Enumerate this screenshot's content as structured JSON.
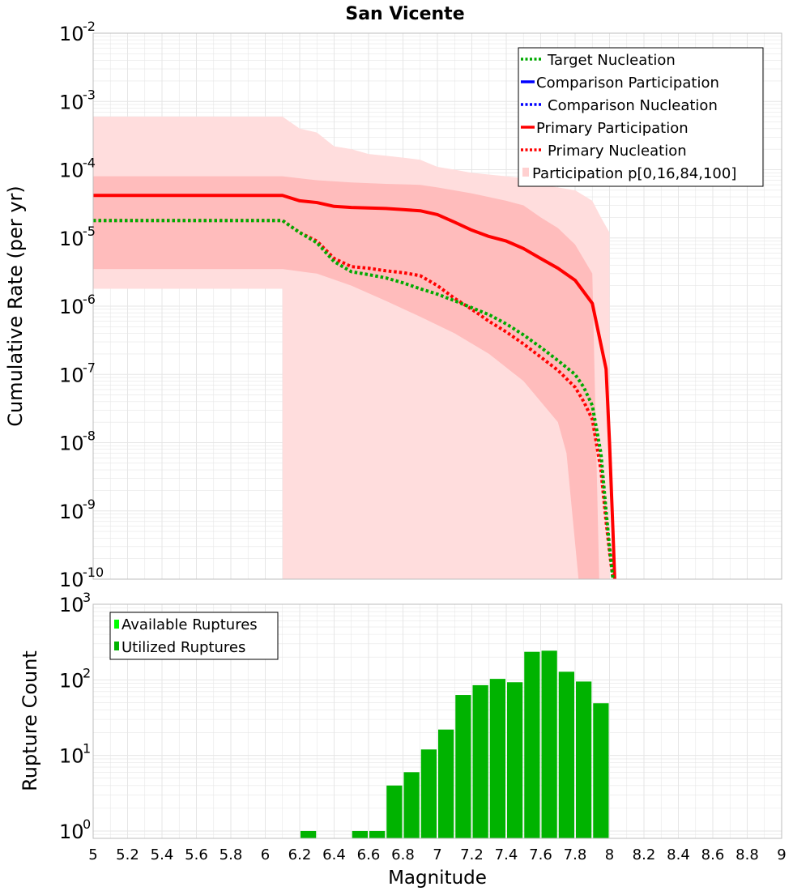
{
  "colors": {
    "target": "#00aa00",
    "comparison": "#0000ff",
    "primary": "#ff0000",
    "band_outer": "#ffdddd",
    "band_inner": "#ffbcbc",
    "available": "#00ff00",
    "utilized": "#00b300",
    "grid": "#e6e6e6"
  },
  "chart_data": [
    {
      "type": "line",
      "title": "San Vicente",
      "xlabel": "",
      "ylabel": "Cumulative Rate (per yr)",
      "xlim": [
        5,
        9
      ],
      "ylim": [
        1e-10,
        0.01
      ],
      "yscale": "log",
      "ytick_labels": [
        {
          "base": "10",
          "exp": "-10",
          "value": 1e-10
        },
        {
          "base": "10",
          "exp": "-9",
          "value": 1e-09
        },
        {
          "base": "10",
          "exp": "-8",
          "value": 1e-08
        },
        {
          "base": "10",
          "exp": "-7",
          "value": 1e-07
        },
        {
          "base": "10",
          "exp": "-6",
          "value": 1e-06
        },
        {
          "base": "10",
          "exp": "-5",
          "value": 1e-05
        },
        {
          "base": "10",
          "exp": "-4",
          "value": 0.0001
        },
        {
          "base": "10",
          "exp": "-3",
          "value": 0.001
        },
        {
          "base": "10",
          "exp": "-2",
          "value": 0.01
        }
      ],
      "legend": {
        "position": "top-right",
        "entries": [
          "Target Nucleation",
          "Comparison Participation",
          "Comparison Nucleation",
          "Primary Participation",
          "Primary Nucleation",
          "Participation p[0,16,84,100]"
        ]
      },
      "bands": {
        "p0_p100": {
          "upper": [
            [
              5.0,
              0.0006
            ],
            [
              6.1,
              0.0006
            ],
            [
              6.2,
              0.0004
            ],
            [
              6.3,
              0.00035
            ],
            [
              6.4,
              0.00022
            ],
            [
              6.5,
              0.0002
            ],
            [
              6.6,
              0.00017
            ],
            [
              6.7,
              0.00016
            ],
            [
              6.8,
              0.00015
            ],
            [
              6.9,
              0.00014
            ],
            [
              7.0,
              0.00011
            ],
            [
              7.1,
              0.0001
            ],
            [
              7.2,
              9e-05
            ],
            [
              7.3,
              8.5e-05
            ],
            [
              7.4,
              8e-05
            ],
            [
              7.5,
              7.5e-05
            ],
            [
              7.6,
              6e-05
            ],
            [
              7.7,
              5.5e-05
            ],
            [
              7.8,
              5e-05
            ],
            [
              7.9,
              3.5e-05
            ],
            [
              7.95,
              2e-05
            ],
            [
              8.0,
              1.2e-05
            ],
            [
              8.001,
              1e-10
            ]
          ],
          "lower": [
            [
              5.0,
              1.8e-06
            ],
            [
              6.1,
              1.8e-06
            ],
            [
              6.101,
              1e-10
            ]
          ]
        },
        "p16_p84": {
          "upper": [
            [
              5.0,
              8e-05
            ],
            [
              6.1,
              8e-05
            ],
            [
              6.3,
              7e-05
            ],
            [
              6.5,
              6.5e-05
            ],
            [
              6.7,
              6.2e-05
            ],
            [
              6.9,
              6e-05
            ],
            [
              7.0,
              5.5e-05
            ],
            [
              7.2,
              4.5e-05
            ],
            [
              7.4,
              3.5e-05
            ],
            [
              7.5,
              3e-05
            ],
            [
              7.6,
              2e-05
            ],
            [
              7.7,
              1.4e-05
            ],
            [
              7.8,
              8e-06
            ],
            [
              7.9,
              3e-06
            ],
            [
              7.94,
              1e-10
            ]
          ],
          "lower": [
            [
              5.0,
              3.5e-06
            ],
            [
              6.1,
              3.5e-06
            ],
            [
              6.3,
              3e-06
            ],
            [
              6.5,
              2e-06
            ],
            [
              6.7,
              1.2e-06
            ],
            [
              6.9,
              7e-07
            ],
            [
              7.1,
              4e-07
            ],
            [
              7.3,
              2e-07
            ],
            [
              7.5,
              8e-08
            ],
            [
              7.7,
              2e-08
            ],
            [
              7.75,
              7e-09
            ],
            [
              7.82,
              1e-10
            ]
          ]
        }
      },
      "series": [
        {
          "name": "Primary Participation",
          "style": "solid",
          "x": [
            5.0,
            5.2,
            5.4,
            5.6,
            5.8,
            6.0,
            6.1,
            6.2,
            6.3,
            6.4,
            6.5,
            6.6,
            6.7,
            6.8,
            6.9,
            7.0,
            7.1,
            7.2,
            7.3,
            7.4,
            7.5,
            7.6,
            7.7,
            7.8,
            7.9,
            7.98,
            8.0,
            8.02,
            8.03
          ],
          "y": [
            4.2e-05,
            4.2e-05,
            4.2e-05,
            4.2e-05,
            4.2e-05,
            4.2e-05,
            4.2e-05,
            3.5e-05,
            3.3e-05,
            2.9e-05,
            2.8e-05,
            2.75e-05,
            2.7e-05,
            2.6e-05,
            2.5e-05,
            2.2e-05,
            1.7e-05,
            1.3e-05,
            1.05e-05,
            9e-06,
            7e-06,
            5e-06,
            3.6e-06,
            2.4e-06,
            1.1e-06,
            1.2e-07,
            1e-08,
            5e-10,
            1e-10
          ]
        },
        {
          "name": "Primary Nucleation",
          "style": "dotted",
          "x": [
            5.0,
            5.4,
            5.8,
            6.0,
            6.1,
            6.2,
            6.3,
            6.4,
            6.5,
            6.6,
            6.7,
            6.8,
            6.9,
            7.0,
            7.1,
            7.2,
            7.3,
            7.4,
            7.5,
            7.6,
            7.7,
            7.8,
            7.85,
            7.9,
            7.95,
            7.98,
            8.0,
            8.02
          ],
          "y": [
            1.8e-05,
            1.8e-05,
            1.8e-05,
            1.8e-05,
            1.8e-05,
            1.2e-05,
            9e-06,
            5e-06,
            3.8e-06,
            3.6e-06,
            3.3e-06,
            3.1e-06,
            2.8e-06,
            2e-06,
            1.3e-06,
            9e-07,
            6e-07,
            4.2e-07,
            2.8e-07,
            1.8e-07,
            1.15e-07,
            6.5e-08,
            4e-08,
            2.2e-08,
            4e-09,
            7e-10,
            2.5e-10,
            1e-10
          ]
        },
        {
          "name": "Target Nucleation",
          "style": "dotted",
          "x": [
            5.0,
            5.4,
            5.8,
            6.0,
            6.1,
            6.2,
            6.3,
            6.4,
            6.5,
            6.6,
            6.7,
            6.8,
            6.9,
            7.0,
            7.1,
            7.2,
            7.3,
            7.4,
            7.5,
            7.6,
            7.7,
            7.8,
            7.85,
            7.9,
            7.95,
            7.98,
            8.0,
            8.02
          ],
          "y": [
            1.8e-05,
            1.8e-05,
            1.8e-05,
            1.8e-05,
            1.8e-05,
            1.2e-05,
            8.5e-06,
            4.5e-06,
            3.2e-06,
            2.9e-06,
            2.6e-06,
            2.2e-06,
            1.8e-06,
            1.5e-06,
            1.2e-06,
            9.5e-07,
            7.5e-07,
            5.5e-07,
            3.8e-07,
            2.5e-07,
            1.6e-07,
            1e-07,
            6.5e-08,
            3.5e-08,
            7e-09,
            1e-09,
            3e-10,
            1e-10
          ]
        }
      ]
    },
    {
      "type": "bar",
      "title": "",
      "xlabel": "Magnitude",
      "ylabel": "Rupture Count",
      "xlim": [
        5,
        9
      ],
      "ylim": [
        0.8,
        1000
      ],
      "yscale": "log",
      "ytick_labels": [
        {
          "base": "10",
          "exp": "0",
          "value": 1
        },
        {
          "base": "10",
          "exp": "1",
          "value": 10
        },
        {
          "base": "10",
          "exp": "2",
          "value": 100
        },
        {
          "base": "10",
          "exp": "3",
          "value": 1000
        }
      ],
      "xtick_labels": [
        "5",
        "5.2",
        "5.4",
        "5.6",
        "5.8",
        "6",
        "6.2",
        "6.4",
        "6.6",
        "6.8",
        "7",
        "7.2",
        "7.4",
        "7.6",
        "7.8",
        "8",
        "8.2",
        "8.4",
        "8.6",
        "8.8",
        "9"
      ],
      "bin_width": 0.1,
      "legend": {
        "position": "top-left",
        "entries": [
          "Available Ruptures",
          "Utilized Ruptures"
        ]
      },
      "bars": [
        {
          "x": 6.25,
          "value": 1
        },
        {
          "x": 6.55,
          "value": 1
        },
        {
          "x": 6.65,
          "value": 1
        },
        {
          "x": 6.75,
          "value": 4
        },
        {
          "x": 6.85,
          "value": 6
        },
        {
          "x": 6.95,
          "value": 12
        },
        {
          "x": 7.05,
          "value": 22
        },
        {
          "x": 7.15,
          "value": 63
        },
        {
          "x": 7.25,
          "value": 85
        },
        {
          "x": 7.35,
          "value": 103
        },
        {
          "x": 7.45,
          "value": 93
        },
        {
          "x": 7.55,
          "value": 235
        },
        {
          "x": 7.65,
          "value": 243
        },
        {
          "x": 7.75,
          "value": 128
        },
        {
          "x": 7.85,
          "value": 95
        },
        {
          "x": 7.95,
          "value": 49
        }
      ]
    }
  ]
}
